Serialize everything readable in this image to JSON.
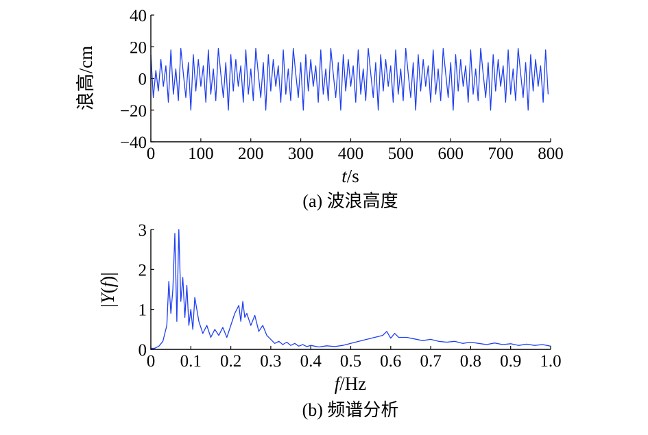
{
  "chart_data": [
    {
      "type": "line",
      "caption": "(a) 波浪高度",
      "xlabel": "t/s",
      "xlabel_var": "t",
      "xlabel_unit": "/s",
      "ylabel": "浪高/cm",
      "xlim": [
        0,
        800
      ],
      "ylim": [
        -40,
        40
      ],
      "xticks": [
        0,
        100,
        200,
        300,
        400,
        500,
        600,
        700,
        800
      ],
      "xtick_labels": [
        "0",
        "100",
        "200",
        "300",
        "400",
        "500",
        "600",
        "700",
        "800"
      ],
      "yticks": [
        40,
        20,
        0,
        -20,
        -40
      ],
      "ytick_labels": [
        "40",
        "20",
        "0",
        "−20",
        "−40"
      ],
      "grid": false,
      "color": "#1f3fef",
      "series": [
        {
          "x": [
            0,
            5,
            10,
            15,
            20,
            25,
            30,
            35,
            40,
            45,
            50,
            55,
            60,
            65,
            70,
            75,
            80,
            85,
            90,
            95,
            100,
            105,
            110,
            115,
            120,
            125,
            130,
            135,
            140,
            145,
            150,
            155,
            160,
            165,
            170,
            175,
            180,
            185,
            190,
            195,
            200,
            205,
            210,
            215,
            220,
            225,
            230,
            235,
            240,
            245,
            250,
            255,
            260,
            265,
            270,
            275,
            280,
            285,
            290,
            295,
            300,
            305,
            310,
            315,
            320,
            325,
            330,
            335,
            340,
            345,
            350,
            355,
            360,
            365,
            370,
            375,
            380,
            385,
            390,
            395,
            400,
            405,
            410,
            415,
            420,
            425,
            430,
            435,
            440,
            445,
            450,
            455,
            460,
            465,
            470,
            475,
            480,
            485,
            490,
            495,
            500,
            505,
            510,
            515,
            520,
            525,
            530,
            535,
            540,
            545,
            550,
            555,
            560,
            565,
            570,
            575,
            580,
            585,
            590,
            595,
            600,
            605,
            610,
            615,
            620,
            625,
            630,
            635,
            640,
            645,
            650,
            655,
            660,
            665,
            670,
            675,
            680,
            685,
            690,
            695,
            700,
            705,
            710,
            715,
            720,
            725,
            730,
            735,
            740,
            745,
            750,
            755,
            760,
            765,
            770,
            775,
            780,
            785,
            790,
            795
          ],
          "y": [
            15,
            -12,
            5,
            -8,
            12,
            -5,
            8,
            -15,
            18,
            -10,
            6,
            -14,
            19,
            3,
            -12,
            10,
            -20,
            15,
            -8,
            12,
            -5,
            8,
            -15,
            18,
            -10,
            6,
            -14,
            19,
            3,
            -12,
            10,
            -20,
            15,
            -8,
            12,
            -5,
            8,
            -15,
            18,
            -10,
            6,
            -14,
            19,
            3,
            -12,
            10,
            -20,
            15,
            -8,
            12,
            -5,
            8,
            -15,
            18,
            -10,
            6,
            -14,
            19,
            3,
            -12,
            10,
            -20,
            15,
            -8,
            12,
            -5,
            8,
            -15,
            18,
            -10,
            6,
            -14,
            19,
            3,
            -12,
            10,
            -20,
            15,
            -8,
            12,
            -5,
            8,
            -15,
            18,
            -10,
            6,
            -14,
            19,
            3,
            -12,
            10,
            -20,
            15,
            -8,
            12,
            -5,
            8,
            -15,
            18,
            -10,
            6,
            -14,
            19,
            3,
            -12,
            10,
            -20,
            15,
            -8,
            12,
            -5,
            8,
            -15,
            18,
            -10,
            6,
            -14,
            19,
            3,
            -12,
            10,
            -20,
            15,
            -8,
            12,
            -5,
            8,
            -15,
            18,
            -10,
            6,
            -14,
            19,
            3,
            -12,
            10,
            -20,
            15,
            -8,
            12,
            -5,
            8,
            -15,
            18,
            -10,
            6,
            -14,
            19,
            3,
            -12,
            10,
            -20,
            15,
            -8,
            12,
            -5,
            8,
            -15,
            18,
            -10
          ]
        }
      ]
    },
    {
      "type": "line",
      "caption": "(b) 频谱分析",
      "xlabel": "f/Hz",
      "xlabel_var": "f",
      "xlabel_unit": "/Hz",
      "ylabel": "|Y(f)|",
      "xlim": [
        0,
        1.0
      ],
      "ylim": [
        0,
        3
      ],
      "xticks": [
        0,
        0.1,
        0.2,
        0.3,
        0.4,
        0.5,
        0.6,
        0.7,
        0.8,
        0.9,
        1.0
      ],
      "xtick_labels": [
        "0",
        "0.1",
        "0.2",
        "0.3",
        "0.4",
        "0.5",
        "0.6",
        "0.7",
        "0.8",
        "0.9",
        "1.0"
      ],
      "yticks": [
        3,
        2,
        1,
        0
      ],
      "ytick_labels": [
        "3",
        "2",
        "1",
        "0"
      ],
      "grid": false,
      "color": "#1f3fef",
      "series": [
        {
          "x": [
            0,
            0.01,
            0.02,
            0.03,
            0.04,
            0.045,
            0.05,
            0.055,
            0.06,
            0.065,
            0.07,
            0.075,
            0.08,
            0.085,
            0.09,
            0.095,
            0.1,
            0.105,
            0.11,
            0.12,
            0.13,
            0.14,
            0.15,
            0.16,
            0.17,
            0.18,
            0.19,
            0.2,
            0.21,
            0.22,
            0.225,
            0.23,
            0.235,
            0.24,
            0.25,
            0.26,
            0.27,
            0.28,
            0.29,
            0.3,
            0.31,
            0.32,
            0.33,
            0.34,
            0.35,
            0.36,
            0.37,
            0.38,
            0.39,
            0.4,
            0.42,
            0.44,
            0.46,
            0.48,
            0.5,
            0.52,
            0.54,
            0.56,
            0.58,
            0.59,
            0.6,
            0.61,
            0.62,
            0.64,
            0.66,
            0.68,
            0.7,
            0.72,
            0.74,
            0.76,
            0.78,
            0.8,
            0.82,
            0.84,
            0.86,
            0.88,
            0.9,
            0.92,
            0.94,
            0.96,
            0.98,
            1.0
          ],
          "y": [
            0.02,
            0.03,
            0.08,
            0.2,
            0.6,
            1.7,
            0.9,
            1.5,
            2.9,
            0.7,
            3.0,
            1.2,
            1.8,
            0.8,
            1.6,
            0.6,
            1.0,
            0.5,
            1.3,
            0.7,
            0.4,
            0.6,
            0.3,
            0.5,
            0.35,
            0.55,
            0.3,
            0.6,
            0.9,
            1.1,
            0.7,
            1.2,
            0.8,
            0.9,
            0.6,
            0.85,
            0.45,
            0.6,
            0.35,
            0.25,
            0.15,
            0.2,
            0.12,
            0.18,
            0.1,
            0.15,
            0.08,
            0.12,
            0.07,
            0.1,
            0.06,
            0.09,
            0.07,
            0.1,
            0.15,
            0.2,
            0.25,
            0.3,
            0.35,
            0.45,
            0.28,
            0.4,
            0.3,
            0.3,
            0.26,
            0.22,
            0.25,
            0.2,
            0.18,
            0.2,
            0.15,
            0.18,
            0.15,
            0.12,
            0.16,
            0.12,
            0.14,
            0.1,
            0.13,
            0.1,
            0.12,
            0.08
          ]
        }
      ]
    }
  ]
}
